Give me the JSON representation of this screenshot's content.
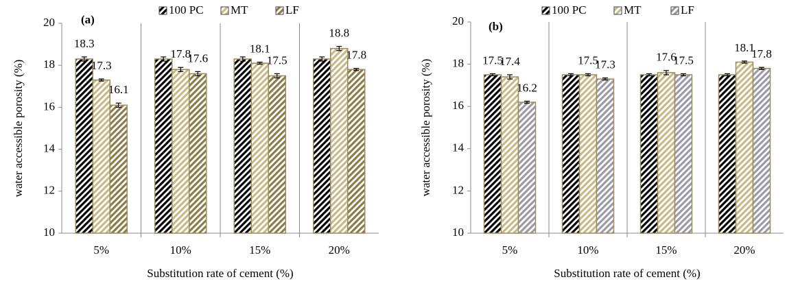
{
  "chart_data": [
    {
      "type": "bar",
      "title": "(a)",
      "xlabel": "Substitution rate of cement (%)",
      "ylabel": "water accessible porosity (%)",
      "categories": [
        "5%",
        "10%",
        "15%",
        "20%"
      ],
      "series": [
        {
          "name": "100 PC",
          "color": "#000000",
          "values": [
            18.3,
            18.3,
            18.3,
            18.3
          ],
          "errors": [
            0.1,
            0.1,
            0.1,
            0.1
          ],
          "show_value_labels": [
            true,
            false,
            false,
            false
          ]
        },
        {
          "name": "MT",
          "color": "#c8b98a",
          "values": [
            17.3,
            17.8,
            18.1,
            18.8
          ],
          "errors": [
            0.05,
            0.1,
            0.05,
            0.1
          ],
          "show_value_labels": [
            true,
            true,
            true,
            true
          ]
        },
        {
          "name": "LF",
          "color": "#8b7d4a",
          "values": [
            16.1,
            17.6,
            17.5,
            17.8
          ],
          "errors": [
            0.1,
            0.1,
            0.1,
            0.05
          ],
          "show_value_labels": [
            true,
            true,
            true,
            true
          ]
        }
      ],
      "ylim": [
        10,
        20
      ],
      "yticks": [
        10,
        12,
        14,
        16,
        18,
        20
      ],
      "legend": "top"
    },
    {
      "type": "bar",
      "title": "(b)",
      "xlabel": "Substitution rate of cement (%)",
      "ylabel": "water accessible porosity (%)",
      "categories": [
        "5%",
        "10%",
        "15%",
        "20%"
      ],
      "series": [
        {
          "name": "100 PC",
          "color": "#000000",
          "values": [
            17.5,
            17.5,
            17.5,
            17.5
          ],
          "errors": [
            0.05,
            0.05,
            0.05,
            0.05
          ],
          "show_value_labels": [
            true,
            false,
            false,
            false
          ]
        },
        {
          "name": "MT",
          "color": "#c8b98a",
          "values": [
            17.4,
            17.5,
            17.6,
            18.1
          ],
          "errors": [
            0.1,
            0.05,
            0.1,
            0.05
          ],
          "show_value_labels": [
            true,
            true,
            true,
            true
          ]
        },
        {
          "name": "LF",
          "color": "#9a9aa8",
          "values": [
            16.2,
            17.3,
            17.5,
            17.8
          ],
          "errors": [
            0.05,
            0.05,
            0.05,
            0.05
          ],
          "show_value_labels": [
            true,
            true,
            true,
            true
          ]
        }
      ],
      "ylim": [
        10,
        20
      ],
      "yticks": [
        10,
        12,
        14,
        16,
        18,
        20
      ],
      "legend": "top"
    }
  ]
}
